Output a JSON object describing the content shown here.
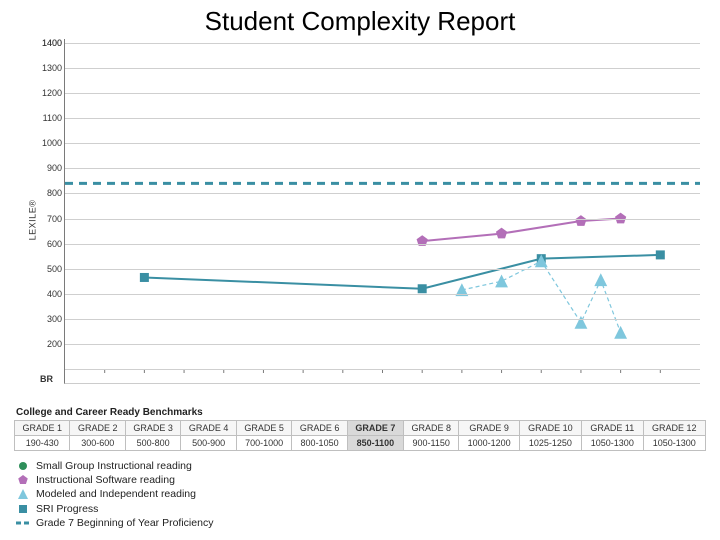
{
  "title": "Student Complexity Report",
  "chart": {
    "type": "line",
    "y_axis_label": "LEXILE®",
    "y_min_label": "BR",
    "y_min": 100,
    "y_max": 1400,
    "y_tick_step": 100,
    "grid_color": "#cfcfcf",
    "axis_color": "#7a7a7a",
    "background_color": "#ffffff",
    "x_count": 16,
    "reference_line": {
      "value": 840,
      "color": "#3a8fa3",
      "dash": "8,6",
      "width": 3
    },
    "series": [
      {
        "key": "sri",
        "label": "SRI Progress",
        "color": "#3a8fa3",
        "marker": "square",
        "marker_size": 8,
        "line_width": 2,
        "points": [
          {
            "xi": 2,
            "y": 465
          },
          {
            "xi": 9,
            "y": 420
          },
          {
            "xi": 12,
            "y": 540
          },
          {
            "xi": 15,
            "y": 555
          }
        ]
      },
      {
        "key": "modeled",
        "label": "Modeled and Independent reading",
        "color": "#7fc7dd",
        "marker": "triangle",
        "marker_size": 9,
        "line_width": 1.2,
        "line_dash": "4,3",
        "points": [
          {
            "xi": 10,
            "y": 415
          },
          {
            "xi": 11,
            "y": 450
          },
          {
            "xi": 12,
            "y": 530
          },
          {
            "xi": 13,
            "y": 285
          },
          {
            "xi": 13.5,
            "y": 455
          },
          {
            "xi": 14,
            "y": 245
          }
        ]
      },
      {
        "key": "software",
        "label": "Instructional Software reading",
        "color": "#b36fb8",
        "marker": "pentagon",
        "marker_size": 9,
        "line_width": 2,
        "points": [
          {
            "xi": 9,
            "y": 610
          },
          {
            "xi": 11,
            "y": 640
          },
          {
            "xi": 13,
            "y": 690
          },
          {
            "xi": 14,
            "y": 700
          }
        ]
      }
    ]
  },
  "benchmarks": {
    "title": "College and Career Ready Benchmarks",
    "highlight_index": 6,
    "columns": [
      "GRADE 1",
      "GRADE 2",
      "GRADE 3",
      "GRADE 4",
      "GRADE 5",
      "GRADE 6",
      "GRADE 7",
      "GRADE 8",
      "GRADE 9",
      "GRADE 10",
      "GRADE 11",
      "GRADE 12"
    ],
    "rows": [
      [
        "190-430",
        "300-600",
        "500-800",
        "500-900",
        "700-1000",
        "800-1050",
        "850-1100",
        "900-1150",
        "1000-1200",
        "1025-1250",
        "1050-1300",
        "1050-1300"
      ]
    ]
  },
  "legend": {
    "items": [
      {
        "key": "smallgroup",
        "label": "Small Group Instructional reading",
        "color": "#2e8f5a",
        "shape": "circle"
      },
      {
        "key": "software",
        "label": "Instructional Software reading",
        "color": "#b36fb8",
        "shape": "pentagon"
      },
      {
        "key": "modeled",
        "label": "Modeled and Independent reading",
        "color": "#7fc7dd",
        "shape": "triangle"
      },
      {
        "key": "sri",
        "label": "SRI Progress",
        "color": "#3a8fa3",
        "shape": "square"
      },
      {
        "key": "ref",
        "label": "Grade 7 Beginning of Year Proficiency",
        "color": "#3a8fa3",
        "shape": "dash"
      }
    ]
  }
}
